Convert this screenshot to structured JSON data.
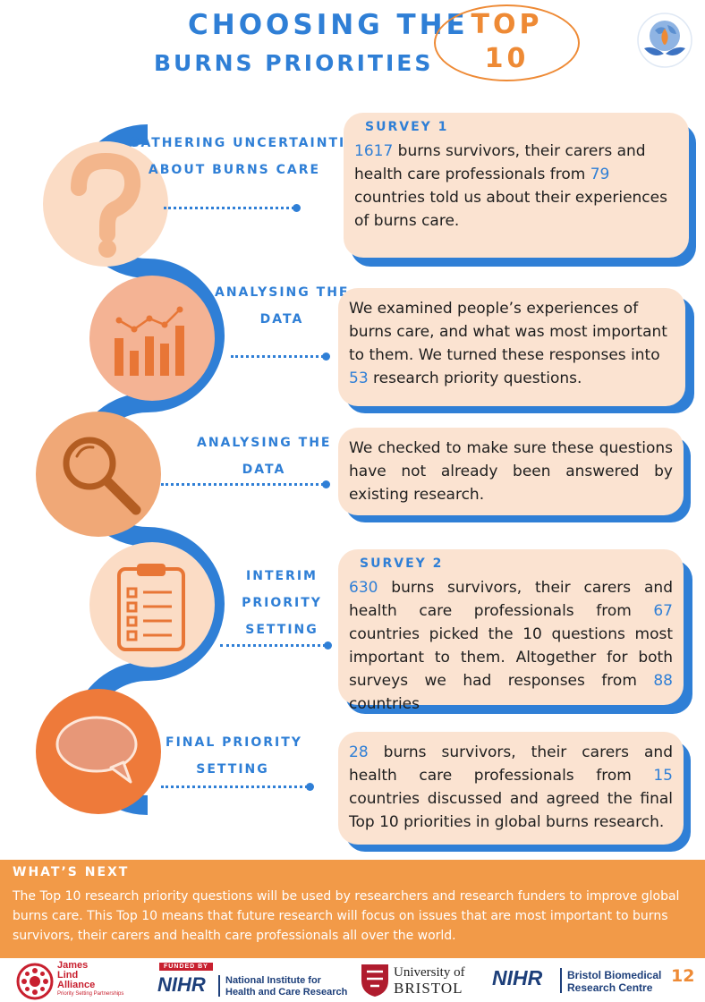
{
  "header": {
    "title_line1": "CHOOSING THE",
    "title_line2": "BURNS PRIORITIES",
    "top_word": "TOP",
    "top_number": "10"
  },
  "steps": [
    {
      "label_lines": [
        "GATHERING UNCERTAINTIES",
        "ABOUT BURNS CARE"
      ],
      "icon": "question-mark-icon",
      "card_heading": "SURVEY 1",
      "card_parts": [
        "1617",
        " burns survivors, their carers and health care professionals from ",
        "79",
        " countries told us about their experiences of burns care."
      ]
    },
    {
      "label_lines": [
        "ANALYSING THE",
        "DATA"
      ],
      "icon": "bar-chart-icon",
      "card_parts": [
        "We examined people’s experiences of burns care, and what was most important to them. We turned these responses into ",
        "53",
        " research priority questions."
      ]
    },
    {
      "label_lines": [
        "ANALYSING THE",
        "DATA"
      ],
      "icon": "magnifying-glass-icon",
      "card_parts": [
        "We checked to make sure these questions have not already been answered by existing research."
      ]
    },
    {
      "label_lines": [
        "INTERIM",
        "PRIORITY",
        "SETTING"
      ],
      "icon": "clipboard-checklist-icon",
      "card_heading": "SURVEY 2",
      "card_parts": [
        "630",
        " burns survivors, their carers and health care professionals from ",
        "67",
        " countries picked the 10 questions most important to them. Altogether for both surveys we had responses from ",
        "88",
        " countries"
      ]
    },
    {
      "label_lines": [
        "FINAL PRIORITY",
        "SETTING"
      ],
      "icon": "speech-bubble-icon",
      "card_parts": [
        "28",
        " burns survivors, their carers and health care professionals from ",
        "15",
        " countries discussed and agreed the final Top 10 priorities in global burns research."
      ]
    }
  ],
  "whats_next": {
    "title": "WHAT’S NEXT",
    "text": "The Top 10 research priority questions will be used by researchers and research funders to improve global burns care. This Top 10 means that future research will focus on issues that are most important to burns survivors, their carers and health care professionals all over the world."
  },
  "footer": {
    "jla_name": [
      "James",
      "Lind",
      "Alliance"
    ],
    "jla_tagline": "Priority Setting Partnerships",
    "nihr_funded_by": "FUNDED BY",
    "nihr_abbr": "NIHR",
    "nihr_name": [
      "National Institute for",
      "Health and Care Research"
    ],
    "uob_name": [
      "University of",
      "BRISTOL"
    ],
    "brc_abbr": "NIHR",
    "brc_name": [
      "Bristol Biomedical",
      "Research Centre"
    ],
    "page_number": "12"
  },
  "colors": {
    "blue": "#2f7fd6",
    "orange": "#ee8a35",
    "card_bg": "#fbe3d1",
    "band": "#f29a48"
  }
}
